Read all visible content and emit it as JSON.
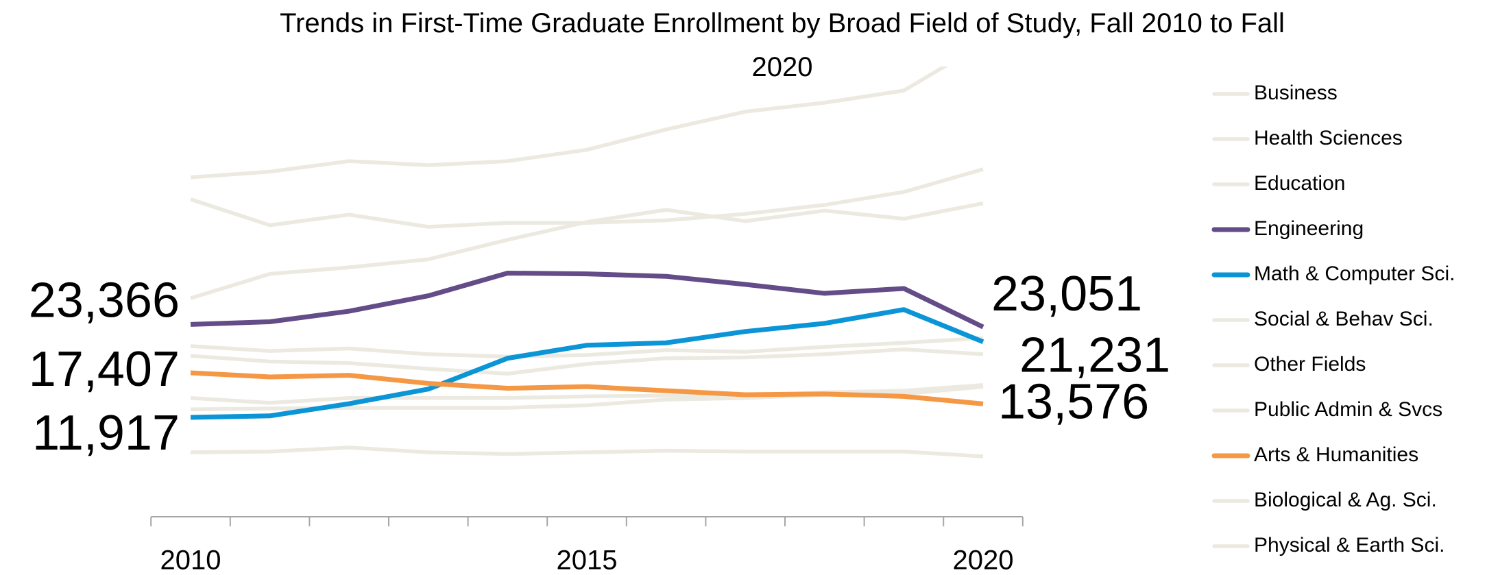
{
  "chart_data": {
    "type": "line",
    "title": "Trends in First-Time Graduate Enrollment by Broad Field of Study, Fall 2010 to Fall 2020",
    "categories": [
      "2010",
      null,
      null,
      null,
      null,
      "2015",
      null,
      null,
      null,
      null,
      "2020"
    ],
    "ylim": [
      0,
      55000
    ],
    "series": [
      {
        "name": "Business",
        "color": "#ECE9E0",
        "values": [
          41500,
          42200,
          43500,
          43000,
          43500,
          44900,
          47400,
          49600,
          50700,
          52200,
          58000
        ]
      },
      {
        "name": "Health Sciences",
        "color": "#ECE9E0",
        "values": [
          38800,
          35600,
          36900,
          35400,
          35900,
          35900,
          36200,
          37000,
          38100,
          39700,
          42500
        ]
      },
      {
        "name": "Education",
        "color": "#ECE9E0",
        "values": [
          26600,
          29600,
          30400,
          31400,
          33800,
          36000,
          37500,
          36100,
          37400,
          36400,
          38300
        ]
      },
      {
        "name": "Engineering",
        "color": "#634C87",
        "values": [
          23366,
          23700,
          25000,
          26900,
          29700,
          29600,
          29300,
          28300,
          27200,
          27800,
          23051
        ],
        "value_labels": [
          "23,366",
          null,
          null,
          null,
          null,
          null,
          null,
          null,
          null,
          null,
          "23,051"
        ]
      },
      {
        "name": "Math & Computer Sci.",
        "color": "#0B95D6",
        "values": [
          11917,
          12100,
          13600,
          15400,
          19200,
          20800,
          21100,
          22500,
          23500,
          25200,
          21231
        ],
        "value_labels": [
          "11,917",
          null,
          null,
          null,
          null,
          null,
          null,
          null,
          null,
          null,
          "21,231"
        ]
      },
      {
        "name": "Social & Behav Sci.",
        "color": "#ECE9E0",
        "values": [
          20700,
          20100,
          20400,
          19700,
          19400,
          19600,
          20200,
          20000,
          20600,
          21100,
          21700
        ]
      },
      {
        "name": "Other Fields",
        "color": "#ECE9E0",
        "values": [
          19500,
          18800,
          18600,
          17900,
          17300,
          18500,
          19200,
          19300,
          19700,
          20300,
          19700
        ]
      },
      {
        "name": "Public Admin & Svcs",
        "color": "#ECE9E0",
        "values": [
          14300,
          13700,
          14300,
          14300,
          14300,
          14500,
          14600,
          14600,
          15000,
          15200,
          15900
        ]
      },
      {
        "name": "Arts & Humanities",
        "color": "#F59845",
        "values": [
          17407,
          16900,
          17100,
          16100,
          15500,
          15700,
          15200,
          14700,
          14800,
          14500,
          13576
        ],
        "value_labels": [
          "17,407",
          null,
          null,
          null,
          null,
          null,
          null,
          null,
          null,
          null,
          "13,576"
        ]
      },
      {
        "name": "Biological & Ag. Sci.",
        "color": "#ECE9E0",
        "values": [
          12900,
          13000,
          13100,
          13100,
          13100,
          13400,
          14100,
          14300,
          14700,
          14800,
          15700
        ]
      },
      {
        "name": "Physical & Earth Sci.",
        "color": "#ECE9E0",
        "values": [
          7600,
          7700,
          8200,
          7600,
          7400,
          7600,
          7800,
          7700,
          7700,
          7700,
          7100
        ]
      }
    ]
  }
}
